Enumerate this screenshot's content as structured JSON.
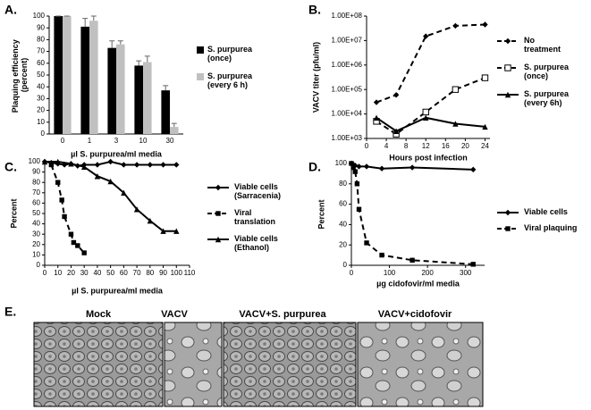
{
  "chart_data": [
    {
      "type": "bar",
      "panel": "A.",
      "ylabel": "Plaquing efficiency (percent)",
      "xlabel": "µl S. purpurea/ml media",
      "categories": [
        "0",
        "1",
        "3",
        "10",
        "30"
      ],
      "series": [
        {
          "name": "S. purpurea (once)",
          "color": "#000000",
          "values": [
            100,
            91,
            73,
            58,
            37
          ],
          "errors": [
            0,
            7,
            6,
            4,
            4
          ]
        },
        {
          "name": "S. purpurea (every 6 h)",
          "color": "#c0c0c0",
          "values": [
            100,
            96,
            76,
            61,
            6
          ],
          "errors": [
            0,
            4,
            3,
            5,
            3
          ]
        }
      ],
      "ylim": [
        0,
        100
      ],
      "yticks": [
        0,
        10,
        20,
        30,
        40,
        50,
        60,
        70,
        80,
        90,
        100
      ]
    },
    {
      "type": "line",
      "panel": "B.",
      "ylabel": "VACV titer (pfu/ml)",
      "xlabel": "Hours post infection",
      "x": [
        2,
        6,
        12,
        18,
        24
      ],
      "yscale": "log",
      "series": [
        {
          "name": "No treatment",
          "color": "#000000",
          "marker": "diamond",
          "dash": true,
          "values": [
            30000,
            60000,
            15000000,
            40000000,
            45000000
          ]
        },
        {
          "name": "S. purpurea (once)",
          "color": "#000000",
          "marker": "open-square",
          "dash": true,
          "values": [
            5000,
            1500,
            12000,
            100000,
            300000
          ]
        },
        {
          "name": "S. purpurea (every 6h)",
          "color": "#000000",
          "marker": "triangle",
          "dash": false,
          "values": [
            7000,
            2000,
            7000,
            4000,
            3000
          ]
        }
      ],
      "xlim": [
        0,
        25
      ],
      "xticks": [
        0,
        4,
        8,
        12,
        16,
        20,
        24
      ],
      "ylim": [
        1000,
        100000000
      ],
      "yticks": [
        {
          "value": 1000,
          "label": "1.00E+03"
        },
        {
          "value": 10000,
          "label": "1.00E+04"
        },
        {
          "value": 100000,
          "label": "1.00E+05"
        },
        {
          "value": 1000000,
          "label": "1.00E+06"
        },
        {
          "value": 10000000,
          "label": "1.00E+07"
        },
        {
          "value": 100000000,
          "label": "1.00E+08"
        }
      ]
    },
    {
      "type": "line",
      "panel": "C.",
      "ylabel": "Percent",
      "xlabel": "µl S. purpurea/ml media",
      "series": [
        {
          "name": "Viable cells (Sarracenia)",
          "color": "#000000",
          "marker": "diamond",
          "dash": false,
          "x": [
            0,
            5,
            10,
            15,
            20,
            25,
            30,
            40,
            50,
            60,
            70,
            80,
            90,
            100
          ],
          "values": [
            100,
            99,
            98,
            97,
            98,
            96,
            97,
            97,
            100,
            97,
            97,
            97,
            97,
            97
          ]
        },
        {
          "name": "Viral translation",
          "color": "#000000",
          "marker": "square",
          "dash": true,
          "x": [
            5,
            10,
            13,
            15,
            20,
            22,
            25,
            30
          ],
          "values": [
            97,
            80,
            63,
            47,
            30,
            22,
            19,
            12
          ]
        },
        {
          "name": "Viable cells (Ethanol)",
          "color": "#000000",
          "marker": "triangle",
          "dash": false,
          "x": [
            0,
            10,
            20,
            30,
            40,
            50,
            60,
            70,
            80,
            90,
            100
          ],
          "values": [
            100,
            100,
            98,
            95,
            86,
            81,
            70,
            54,
            43,
            33,
            33
          ]
        }
      ],
      "xlim": [
        0,
        110
      ],
      "xticks": [
        0,
        10,
        20,
        30,
        40,
        50,
        60,
        70,
        80,
        90,
        100,
        110
      ],
      "ylim": [
        0,
        100
      ],
      "yticks": [
        0,
        10,
        20,
        30,
        40,
        50,
        60,
        70,
        80,
        90,
        100
      ]
    },
    {
      "type": "line",
      "panel": "D.",
      "ylabel": "Percent",
      "xlabel": "µg cidofovir/ml media",
      "series": [
        {
          "name": "Viable cells",
          "color": "#000000",
          "marker": "diamond",
          "dash": false,
          "x": [
            0,
            5,
            10,
            20,
            40,
            80,
            160,
            320
          ],
          "values": [
            100,
            99,
            98,
            97,
            97,
            95,
            96,
            94
          ]
        },
        {
          "name": "Viral plaquing",
          "color": "#000000",
          "marker": "square",
          "dash": true,
          "x": [
            0,
            5,
            10,
            15,
            20,
            40,
            80,
            160,
            320
          ],
          "values": [
            100,
            96,
            92,
            80,
            55,
            22,
            10,
            5,
            1
          ]
        }
      ],
      "xlim": [
        0,
        350
      ],
      "xticks": [
        0,
        100,
        200,
        300
      ],
      "ylim": [
        0,
        100
      ],
      "yticks": [
        0,
        20,
        40,
        60,
        80,
        100
      ]
    }
  ],
  "panel_e": {
    "label": "E.",
    "images": [
      "Mock",
      "VACV",
      "VACV+S. purpurea",
      "VACV+cidofovir"
    ]
  }
}
